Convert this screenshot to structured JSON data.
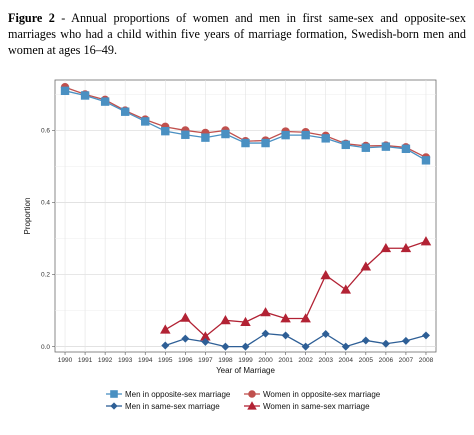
{
  "caption": {
    "label": "Figure 2",
    "text": " - Annual proportions of women and men in first same-sex and opposite-sex marriages who had a child within five years of marriage formation, Swedish-born men and women at ages 16–49."
  },
  "chart_data": {
    "type": "line",
    "title": "",
    "xlabel": "Year of Marriage",
    "ylabel": "Proportion",
    "x": [
      "1990",
      "1991",
      "1992",
      "1993",
      "1994",
      "1995",
      "1996",
      "1997",
      "1998",
      "1999",
      "2000",
      "2001",
      "2002",
      "2003",
      "2004",
      "2005",
      "2006",
      "2007",
      "2008"
    ],
    "yticks": [
      "0.0",
      "0.2",
      "0.4",
      "0.6"
    ],
    "ylim": [
      -0.015,
      0.74
    ],
    "grid": true,
    "legend_position": "bottom",
    "series": [
      {
        "name": "Women in opposite-sex marriage",
        "color": "#c0504d",
        "marker": "circle",
        "values": [
          0.72,
          0.7,
          0.685,
          0.655,
          0.63,
          0.61,
          0.6,
          0.593,
          0.6,
          0.57,
          0.572,
          0.597,
          0.595,
          0.585,
          0.563,
          0.557,
          0.558,
          0.553,
          0.525
        ]
      },
      {
        "name": "Men in opposite-sex marriage",
        "color": "#4a90c2",
        "marker": "square",
        "values": [
          0.71,
          0.697,
          0.68,
          0.652,
          0.625,
          0.598,
          0.588,
          0.58,
          0.59,
          0.565,
          0.565,
          0.587,
          0.587,
          0.578,
          0.56,
          0.552,
          0.555,
          0.549,
          0.517
        ]
      },
      {
        "name": "Women in same-sex marriage",
        "color": "#b22234",
        "marker": "triangle",
        "values": [
          null,
          null,
          null,
          null,
          null,
          0.047,
          0.08,
          0.028,
          0.073,
          0.068,
          0.095,
          0.078,
          0.078,
          0.198,
          0.158,
          0.222,
          0.273,
          0.273,
          0.292
        ]
      },
      {
        "name": "Men in same-sex marriage",
        "color": "#2e5f96",
        "marker": "diamond",
        "values": [
          null,
          null,
          null,
          null,
          null,
          0.003,
          0.022,
          0.013,
          0.0,
          0.0,
          0.036,
          0.031,
          0.0,
          0.035,
          0.0,
          0.017,
          0.008,
          0.016,
          0.031
        ]
      }
    ]
  }
}
